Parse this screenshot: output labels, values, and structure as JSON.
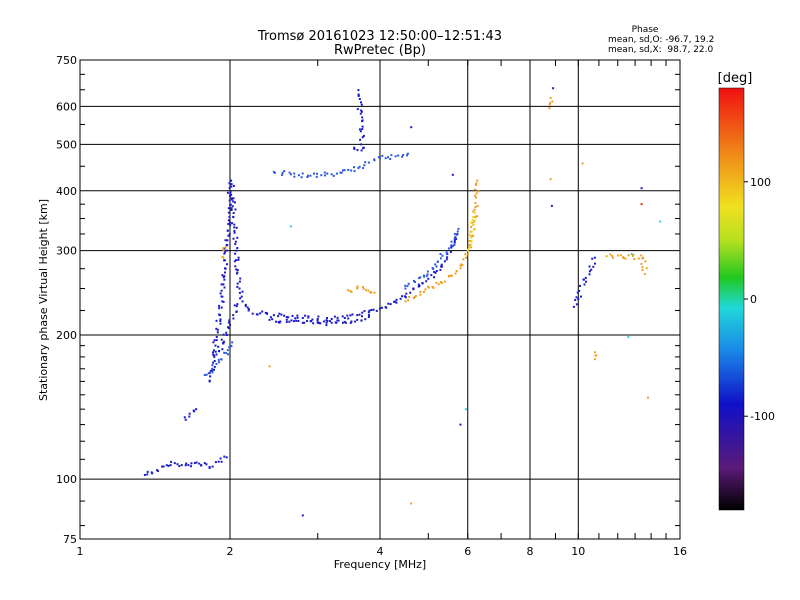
{
  "chart_data": {
    "type": "scatter",
    "title": "Tromsø 20161023 12:50:00–12:51:43",
    "subtitle": "RwPretec (Bp)",
    "xlabel": "Frequency [MHz]",
    "ylabel": "Stationary phase Virtual Height [km]",
    "x_scale": "log",
    "y_scale": "log",
    "xlim": [
      1,
      16
    ],
    "ylim": [
      75,
      750
    ],
    "x_tick_labels": [
      "1",
      "2",
      "4",
      "6",
      "8",
      "10",
      "16"
    ],
    "x_ticks": [
      1,
      2,
      4,
      6,
      8,
      10,
      16
    ],
    "y_tick_labels": [
      "75",
      "100",
      "200",
      "300",
      "400",
      "500",
      "600",
      "750"
    ],
    "y_ticks": [
      75,
      100,
      200,
      300,
      400,
      500,
      600,
      750
    ],
    "grid": true,
    "phase_stats": {
      "heading": "Phase",
      "line_o": "mean, sd,O: -96.7, 19.2",
      "line_x": "mean, sd,X:  98.7, 22.0"
    },
    "colorbar": {
      "label": "[deg]",
      "range": [
        -180,
        180
      ],
      "ticks": [
        100,
        0,
        -100
      ],
      "tick_labels": [
        "100",
        "0",
        "-100"
      ],
      "position": "right"
    },
    "segments": [
      {
        "name": "",
        "color": "#1b1bc8",
        "points": [
          [
            1.35,
            102
          ],
          [
            1.52,
            107
          ],
          [
            1.55,
            108
          ],
          [
            1.6,
            107
          ],
          [
            1.65,
            107
          ],
          [
            1.7,
            108
          ],
          [
            1.75,
            107
          ],
          [
            1.78,
            108
          ],
          [
            1.82,
            106
          ],
          [
            1.97,
            111
          ]
        ]
      },
      {
        "name": "",
        "color": "#1b1bc8",
        "points": [
          [
            1.63,
            133
          ],
          [
            1.66,
            137
          ],
          [
            1.71,
            140
          ]
        ]
      },
      {
        "name": "",
        "color": "#1b1bc8",
        "points": [
          [
            1.82,
            160
          ],
          [
            1.85,
            175
          ],
          [
            1.87,
            190
          ],
          [
            1.89,
            205
          ],
          [
            1.91,
            220
          ],
          [
            1.93,
            235
          ],
          [
            1.94,
            255
          ],
          [
            1.96,
            275
          ],
          [
            1.97,
            300
          ],
          [
            1.98,
            330
          ],
          [
            1.99,
            360
          ],
          [
            2.0,
            390
          ],
          [
            2.01,
            420
          ],
          [
            2.03,
            380
          ],
          [
            2.04,
            340
          ],
          [
            2.06,
            300
          ],
          [
            2.07,
            270
          ],
          [
            2.09,
            250
          ],
          [
            2.12,
            235
          ],
          [
            2.18,
            225
          ],
          [
            2.3,
            222
          ],
          [
            2.45,
            220
          ],
          [
            2.6,
            218
          ],
          [
            2.8,
            217
          ],
          [
            3.0,
            216
          ],
          [
            3.2,
            216
          ],
          [
            3.4,
            217
          ],
          [
            3.6,
            220
          ],
          [
            3.8,
            223
          ],
          [
            4.0,
            227
          ],
          [
            4.2,
            232
          ],
          [
            4.4,
            238
          ],
          [
            4.6,
            245
          ],
          [
            4.8,
            253
          ],
          [
            5.0,
            262
          ],
          [
            5.2,
            272
          ],
          [
            5.4,
            285
          ],
          [
            5.55,
            298
          ],
          [
            5.65,
            312
          ],
          [
            5.72,
            325
          ]
        ]
      },
      {
        "name": "",
        "color": "#1b1bc8",
        "points": [
          [
            1.86,
            180
          ],
          [
            1.9,
            185
          ],
          [
            1.94,
            192
          ],
          [
            1.97,
            200
          ],
          [
            2.0,
            210
          ],
          [
            2.03,
            220
          ],
          [
            2.07,
            232
          ]
        ]
      },
      {
        "name": "",
        "color": "#2d58e0",
        "points": [
          [
            1.78,
            165
          ],
          [
            1.84,
            170
          ],
          [
            1.92,
            178
          ],
          [
            1.98,
            186
          ],
          [
            2.02,
            193
          ]
        ]
      },
      {
        "name": "",
        "color": "#1b1bc8",
        "points": [
          [
            2.4,
            215
          ],
          [
            2.6,
            213
          ],
          [
            2.8,
            212
          ],
          [
            3.0,
            212
          ],
          [
            3.2,
            212
          ],
          [
            3.4,
            213
          ],
          [
            3.6,
            215
          ],
          [
            3.8,
            218
          ]
        ]
      },
      {
        "name": "",
        "color": "#2d58e0",
        "points": [
          [
            2.45,
            438
          ],
          [
            2.55,
            436
          ],
          [
            2.65,
            433
          ],
          [
            2.75,
            431
          ],
          [
            2.9,
            430
          ],
          [
            3.05,
            431
          ],
          [
            3.2,
            433
          ],
          [
            3.35,
            436
          ],
          [
            3.5,
            441
          ],
          [
            3.62,
            446
          ],
          [
            3.72,
            452
          ],
          [
            3.8,
            458
          ],
          [
            3.9,
            463
          ],
          [
            4.0,
            468
          ],
          [
            4.15,
            470
          ],
          [
            4.3,
            472
          ],
          [
            4.45,
            475
          ],
          [
            4.55,
            478
          ]
        ]
      },
      {
        "name": "",
        "color": "#1b1bc8",
        "points": [
          [
            3.55,
            492
          ],
          [
            3.7,
            491
          ],
          [
            3.62,
            649
          ]
        ]
      },
      {
        "name": "",
        "color": "#f0a020",
        "points": [
          [
            3.45,
            248
          ],
          [
            3.6,
            250
          ],
          [
            3.75,
            248
          ],
          [
            3.9,
            245
          ]
        ]
      },
      {
        "name": "",
        "color": "#f0a020",
        "points": [
          [
            4.5,
            235
          ],
          [
            4.7,
            240
          ],
          [
            4.9,
            246
          ],
          [
            5.1,
            252
          ],
          [
            5.3,
            258
          ],
          [
            5.5,
            265
          ],
          [
            5.7,
            272
          ],
          [
            5.85,
            280
          ],
          [
            5.95,
            290
          ],
          [
            6.05,
            305
          ],
          [
            6.12,
            322
          ],
          [
            6.18,
            345
          ],
          [
            6.22,
            370
          ],
          [
            6.25,
            395
          ],
          [
            6.27,
            420
          ]
        ]
      },
      {
        "name": "",
        "color": "#e8d820",
        "points": [
          [
            6.0,
            300
          ],
          [
            6.08,
            320
          ],
          [
            6.15,
            340
          ],
          [
            6.2,
            360
          ]
        ]
      },
      {
        "name": "",
        "color": "#2d58e0",
        "points": [
          [
            4.5,
            250
          ],
          [
            4.7,
            258
          ],
          [
            4.9,
            266
          ],
          [
            5.1,
            276
          ],
          [
            5.3,
            289
          ],
          [
            5.5,
            303
          ],
          [
            5.65,
            318
          ],
          [
            5.75,
            333
          ]
        ]
      },
      {
        "name": "",
        "color": "#2fd0e8",
        "points": [
          [
            2.65,
            337
          ],
          [
            5.95,
            140
          ],
          [
            14.6,
            345
          ],
          [
            12.6,
            198
          ],
          [
            12.8,
            295
          ]
        ]
      },
      {
        "name": "",
        "color": "#1b1bc8",
        "points": [
          [
            2.8,
            84
          ],
          [
            4.62,
            543
          ],
          [
            5.6,
            432
          ],
          [
            8.85,
            372
          ],
          [
            8.9,
            655
          ],
          [
            9.8,
            229
          ],
          [
            10.8,
            290
          ],
          [
            13.4,
            405
          ],
          [
            5.8,
            130
          ]
        ]
      },
      {
        "name": "",
        "color": "#f0a020",
        "points": [
          [
            8.8,
            423
          ],
          [
            8.75,
            595
          ],
          [
            8.78,
            610
          ],
          [
            8.8,
            625
          ],
          [
            10.2,
            456
          ],
          [
            10.8,
            178
          ],
          [
            10.8,
            184
          ],
          [
            11.4,
            292
          ],
          [
            13.5,
            290
          ],
          [
            13.6,
            268
          ],
          [
            13.8,
            148
          ],
          [
            4.62,
            89
          ],
          [
            2.4,
            172
          ],
          [
            1.96,
            305
          ],
          [
            1.94,
            290
          ]
        ]
      },
      {
        "name": "",
        "color": "#e83010",
        "points": [
          [
            13.4,
            375
          ]
        ]
      }
    ]
  }
}
